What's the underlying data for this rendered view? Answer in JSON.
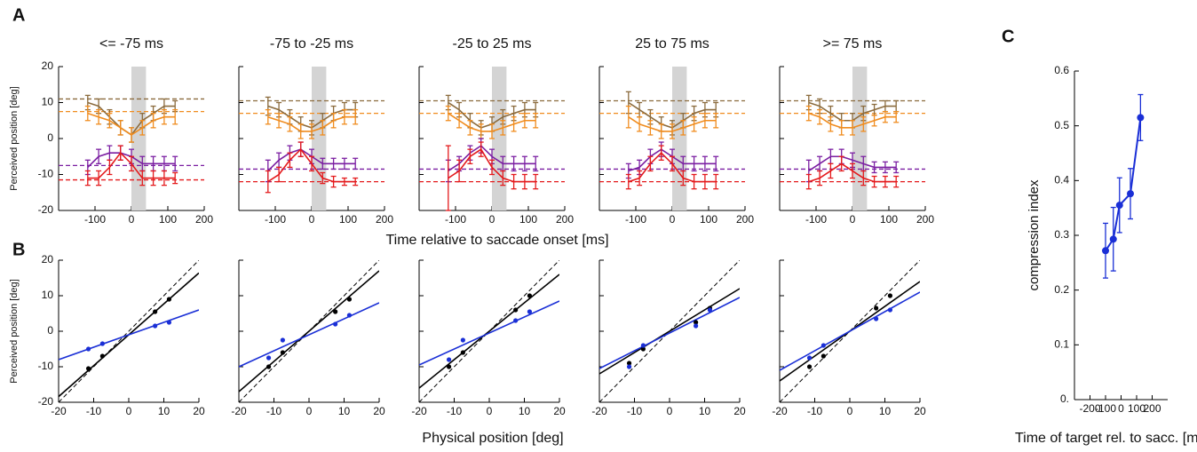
{
  "figure": {
    "panels": [
      "A",
      "B",
      "C"
    ],
    "time_label": "Time relative to saccade onset [ms]",
    "position_label": "Physical position [deg]"
  },
  "chart_data": [
    {
      "type": "line",
      "title": "<= -75 ms",
      "ylabel": "Perceived position [deg]",
      "xlim": [
        -200,
        200
      ],
      "ylim": [
        -20,
        20
      ],
      "xticks": [
        -100,
        0,
        100,
        200
      ],
      "yticks": [
        -20,
        -10,
        0,
        10,
        20
      ],
      "band": [
        0,
        40
      ],
      "x": [
        -120,
        -90,
        -60,
        -30,
        0,
        30,
        60,
        90,
        120
      ],
      "series": [
        {
          "color": "#8b6b3d",
          "values": [
            10,
            9,
            6,
            3,
            1,
            5,
            7,
            9,
            9
          ],
          "errors": [
            2,
            2,
            2,
            2,
            2,
            2,
            2,
            2,
            1.5
          ],
          "ref": 11
        },
        {
          "color": "#f08c1e",
          "values": [
            7,
            6,
            5,
            3,
            1,
            3,
            5,
            6,
            6
          ],
          "errors": [
            2,
            2,
            2,
            2,
            2,
            2,
            2,
            2,
            2
          ],
          "ref": 7.5
        },
        {
          "color": "#7b1fa2",
          "values": [
            -8,
            -5,
            -4,
            -4,
            -5,
            -7,
            -7,
            -7,
            -7
          ],
          "errors": [
            2,
            2,
            2,
            2,
            2,
            2,
            2,
            2,
            2
          ],
          "ref": -7.5
        },
        {
          "color": "#e41a1c",
          "values": [
            -11,
            -11,
            -8,
            -4,
            -7,
            -11,
            -11,
            -11,
            -11
          ],
          "errors": [
            2,
            2,
            2,
            2,
            2,
            2,
            2,
            2,
            1.5
          ],
          "ref": -11.5
        }
      ]
    },
    {
      "type": "line",
      "title": "-75 to -25 ms",
      "ytick_labels": false,
      "xlim": [
        -200,
        200
      ],
      "ylim": [
        -20,
        20
      ],
      "xticks": [
        -100,
        0,
        100,
        200
      ],
      "yticks": [
        -20,
        -10,
        0,
        10,
        20
      ],
      "band": [
        0,
        40
      ],
      "x": [
        -120,
        -90,
        -60,
        -30,
        0,
        30,
        60,
        90,
        120
      ],
      "series": [
        {
          "color": "#8b6b3d",
          "values": [
            9,
            8,
            6,
            4,
            3,
            5,
            7,
            8,
            8
          ],
          "errors": [
            2.5,
            2,
            2,
            2,
            2,
            2,
            2,
            2,
            2
          ],
          "ref": 10.5
        },
        {
          "color": "#f08c1e",
          "values": [
            6,
            5,
            4,
            2,
            2,
            3,
            5,
            6,
            6
          ],
          "errors": [
            2,
            2,
            2,
            2,
            2,
            2,
            2,
            2,
            2
          ],
          "ref": 7
        },
        {
          "color": "#7b1fa2",
          "values": [
            -9,
            -6,
            -4,
            -3,
            -5,
            -7,
            -7,
            -7,
            -7
          ],
          "errors": [
            3,
            2,
            2,
            2,
            2,
            1.5,
            1.5,
            1.5,
            1.5
          ],
          "ref": -8.5
        },
        {
          "color": "#e41a1c",
          "values": [
            -12,
            -10,
            -6,
            -3,
            -7,
            -11,
            -12,
            -12,
            -12
          ],
          "errors": [
            3,
            2,
            2,
            2,
            2,
            1.5,
            1.5,
            1,
            1
          ],
          "ref": -12
        }
      ]
    },
    {
      "type": "line",
      "title": "-25 to 25 ms",
      "ytick_labels": false,
      "xlim": [
        -200,
        200
      ],
      "ylim": [
        -20,
        20
      ],
      "xticks": [
        -100,
        0,
        100,
        200
      ],
      "yticks": [
        -20,
        -10,
        0,
        10,
        20
      ],
      "band": [
        0,
        40
      ],
      "x": [
        -120,
        -90,
        -60,
        -30,
        0,
        30,
        60,
        90,
        120
      ],
      "series": [
        {
          "color": "#8b6b3d",
          "values": [
            10,
            8,
            5,
            3,
            4,
            6,
            7,
            8,
            8
          ],
          "errors": [
            2,
            2,
            2,
            2,
            2,
            2,
            2,
            2,
            2
          ],
          "ref": 10.5
        },
        {
          "color": "#f08c1e",
          "values": [
            7,
            5,
            3,
            2,
            2,
            3,
            4,
            5,
            5
          ],
          "errors": [
            2,
            2,
            2,
            2,
            2,
            2,
            2,
            2,
            2
          ],
          "ref": 7
        },
        {
          "color": "#7b1fa2",
          "values": [
            -9,
            -7,
            -4,
            -2,
            -5,
            -7,
            -7,
            -7,
            -7
          ],
          "errors": [
            3,
            2,
            2,
            2,
            2,
            2,
            2,
            2,
            2
          ],
          "ref": -8.5
        },
        {
          "color": "#e41a1c",
          "values": [
            -11,
            -9,
            -5,
            -3,
            -8,
            -11,
            -12,
            -12,
            -12
          ],
          "errors": [
            9,
            3,
            2,
            2,
            2,
            2,
            2,
            2,
            2
          ],
          "ref": -12
        }
      ]
    },
    {
      "type": "line",
      "title": "25 to 75 ms",
      "ytick_labels": false,
      "xlim": [
        -200,
        200
      ],
      "ylim": [
        -20,
        20
      ],
      "xticks": [
        -100,
        0,
        100,
        200
      ],
      "yticks": [
        -20,
        -10,
        0,
        10,
        20
      ],
      "band": [
        0,
        40
      ],
      "x": [
        -120,
        -90,
        -60,
        -30,
        0,
        30,
        60,
        90,
        120
      ],
      "series": [
        {
          "color": "#8b6b3d",
          "values": [
            10,
            8,
            6,
            4,
            3,
            5,
            7,
            8,
            8
          ],
          "errors": [
            3,
            2,
            2,
            2,
            2,
            2,
            2,
            2,
            2
          ],
          "ref": 10.5
        },
        {
          "color": "#f08c1e",
          "values": [
            6,
            4,
            3,
            2,
            2,
            3,
            4,
            5,
            5
          ],
          "errors": [
            3,
            2,
            2,
            2,
            2,
            2,
            2,
            2,
            2
          ],
          "ref": 7
        },
        {
          "color": "#7b1fa2",
          "values": [
            -9,
            -8,
            -5,
            -3,
            -5,
            -7,
            -7,
            -7,
            -7
          ],
          "errors": [
            2,
            2,
            2,
            2,
            2,
            2,
            2,
            2,
            2
          ],
          "ref": -8.5
        },
        {
          "color": "#e41a1c",
          "values": [
            -12,
            -11,
            -7,
            -4,
            -7,
            -11,
            -12,
            -12,
            -12
          ],
          "errors": [
            2,
            2,
            2,
            2,
            2,
            2,
            2,
            2,
            2
          ],
          "ref": -12
        }
      ]
    },
    {
      "type": "line",
      "title": ">= 75 ms",
      "ytick_labels": false,
      "xlim": [
        -200,
        200
      ],
      "ylim": [
        -20,
        20
      ],
      "xticks": [
        -100,
        0,
        100,
        200
      ],
      "yticks": [
        -20,
        -10,
        0,
        10,
        20
      ],
      "band": [
        0,
        40
      ],
      "x": [
        -120,
        -90,
        -60,
        -30,
        0,
        30,
        60,
        90,
        120
      ],
      "series": [
        {
          "color": "#8b6b3d",
          "values": [
            10,
            9,
            7,
            5,
            5,
            7,
            8,
            9,
            9
          ],
          "errors": [
            2,
            2,
            2,
            2,
            2,
            2,
            1.5,
            1.5,
            1.5
          ],
          "ref": 10.5
        },
        {
          "color": "#f08c1e",
          "values": [
            7,
            6,
            4,
            3,
            3,
            4,
            5,
            6,
            6
          ],
          "errors": [
            2,
            2,
            2,
            2,
            2,
            2,
            1.5,
            1.5,
            1.5
          ],
          "ref": 7
        },
        {
          "color": "#7b1fa2",
          "values": [
            -9,
            -7,
            -5,
            -5,
            -6,
            -7,
            -8,
            -8,
            -8
          ],
          "errors": [
            3,
            2,
            2,
            2,
            2,
            2,
            1.5,
            1.5,
            1.5
          ],
          "ref": -8.5
        },
        {
          "color": "#e41a1c",
          "values": [
            -12,
            -11,
            -9,
            -7,
            -9,
            -11,
            -12,
            -12,
            -12
          ],
          "errors": [
            2,
            2,
            2,
            2,
            2,
            2,
            1.5,
            1.5,
            1.5
          ],
          "ref": -12
        }
      ]
    },
    {
      "type": "scatter",
      "ylabel": "Perceived position [deg]",
      "xlim": [
        -20,
        20
      ],
      "ylim": [
        -20,
        20
      ],
      "xticks": [
        -20,
        -10,
        0,
        10,
        20
      ],
      "yticks": [
        -20,
        -10,
        0,
        10,
        20
      ],
      "x": [
        -11.5,
        -7.5,
        7.5,
        11.5
      ],
      "series": [
        {
          "color": "#000000",
          "values": [
            -10.5,
            -7,
            5.5,
            9
          ]
        },
        {
          "color": "#1a2fd6",
          "values": [
            -5,
            -3.5,
            1.5,
            2.5
          ]
        }
      ],
      "lines": [
        {
          "color": "#000000",
          "slope": 1,
          "intercept": 0,
          "dashed": true
        },
        {
          "color": "#000000",
          "slope": 0.87,
          "intercept": -1
        },
        {
          "color": "#1a2fd6",
          "slope": 0.35,
          "intercept": -1
        }
      ]
    },
    {
      "type": "scatter",
      "ytick_labels": false,
      "xlim": [
        -20,
        20
      ],
      "ylim": [
        -20,
        20
      ],
      "xticks": [
        -20,
        -10,
        0,
        10,
        20
      ],
      "yticks": [
        -20,
        -10,
        0,
        10,
        20
      ],
      "x": [
        -11.5,
        -7.5,
        7.5,
        11.5
      ],
      "series": [
        {
          "color": "#000000",
          "values": [
            -10,
            -6,
            5.5,
            9
          ]
        },
        {
          "color": "#1a2fd6",
          "values": [
            -7.5,
            -2.5,
            2,
            4.5
          ]
        }
      ],
      "lines": [
        {
          "color": "#000000",
          "slope": 1,
          "intercept": 0,
          "dashed": true
        },
        {
          "color": "#000000",
          "slope": 0.85,
          "intercept": 0
        },
        {
          "color": "#1a2fd6",
          "slope": 0.45,
          "intercept": -1
        }
      ]
    },
    {
      "type": "scatter",
      "ytick_labels": false,
      "xlim": [
        -20,
        20
      ],
      "ylim": [
        -20,
        20
      ],
      "xticks": [
        -20,
        -10,
        0,
        10,
        20
      ],
      "yticks": [
        -20,
        -10,
        0,
        10,
        20
      ],
      "x": [
        -11.5,
        -7.5,
        7.5,
        11.5
      ],
      "series": [
        {
          "color": "#000000",
          "values": [
            -10,
            -6,
            6,
            10
          ]
        },
        {
          "color": "#1a2fd6",
          "values": [
            -8,
            -2.5,
            3,
            5.5
          ]
        }
      ],
      "lines": [
        {
          "color": "#000000",
          "slope": 1,
          "intercept": 0,
          "dashed": true
        },
        {
          "color": "#000000",
          "slope": 0.8,
          "intercept": 0
        },
        {
          "color": "#1a2fd6",
          "slope": 0.45,
          "intercept": -0.5
        }
      ]
    },
    {
      "type": "scatter",
      "ytick_labels": false,
      "xlim": [
        -20,
        20
      ],
      "ylim": [
        -20,
        20
      ],
      "xticks": [
        -20,
        -10,
        0,
        10,
        20
      ],
      "yticks": [
        -20,
        -10,
        0,
        10,
        20
      ],
      "x": [
        -11.5,
        -7.5,
        7.5,
        11.5
      ],
      "series": [
        {
          "color": "#000000",
          "values": [
            -9,
            -5,
            2.5,
            6.5
          ]
        },
        {
          "color": "#1a2fd6",
          "values": [
            -10,
            -4,
            1.5,
            6
          ]
        }
      ],
      "lines": [
        {
          "color": "#000000",
          "slope": 1,
          "intercept": 0,
          "dashed": true
        },
        {
          "color": "#000000",
          "slope": 0.6,
          "intercept": 0
        },
        {
          "color": "#1a2fd6",
          "slope": 0.5,
          "intercept": -0.5
        }
      ]
    },
    {
      "type": "scatter",
      "ytick_labels": false,
      "xlim": [
        -20,
        20
      ],
      "ylim": [
        -20,
        20
      ],
      "xticks": [
        -20,
        -10,
        0,
        10,
        20
      ],
      "yticks": [
        -20,
        -10,
        0,
        10,
        20
      ],
      "x": [
        -11.5,
        -7.5,
        7.5,
        11.5
      ],
      "series": [
        {
          "color": "#000000",
          "values": [
            -10,
            -7,
            6.5,
            10
          ]
        },
        {
          "color": "#1a2fd6",
          "values": [
            -7.5,
            -4,
            3.5,
            6
          ]
        }
      ],
      "lines": [
        {
          "color": "#000000",
          "slope": 1,
          "intercept": 0,
          "dashed": true
        },
        {
          "color": "#000000",
          "slope": 0.7,
          "intercept": 0
        },
        {
          "color": "#1a2fd6",
          "slope": 0.55,
          "intercept": 0
        }
      ]
    },
    {
      "type": "line",
      "xlabel": "Time of target rel. to sacc. [ms]",
      "ylabel": "compression index",
      "xlim": [
        -300,
        300
      ],
      "ylim": [
        0,
        0.6
      ],
      "xticks": [
        -200,
        -100,
        0,
        100,
        200
      ],
      "yticks": [
        {
          "value": 0,
          "label": "0."
        },
        0.1,
        0.2,
        0.3,
        0.4,
        0.5,
        0.6
      ],
      "markers": true,
      "x": [
        -100,
        -50,
        -10,
        60,
        125
      ],
      "series": [
        {
          "color": "#1a2fd6",
          "values": [
            0.272,
            0.293,
            0.355,
            0.376,
            0.515
          ],
          "errors": [
            0.05,
            0.058,
            0.05,
            0.046,
            0.042
          ]
        }
      ]
    }
  ]
}
